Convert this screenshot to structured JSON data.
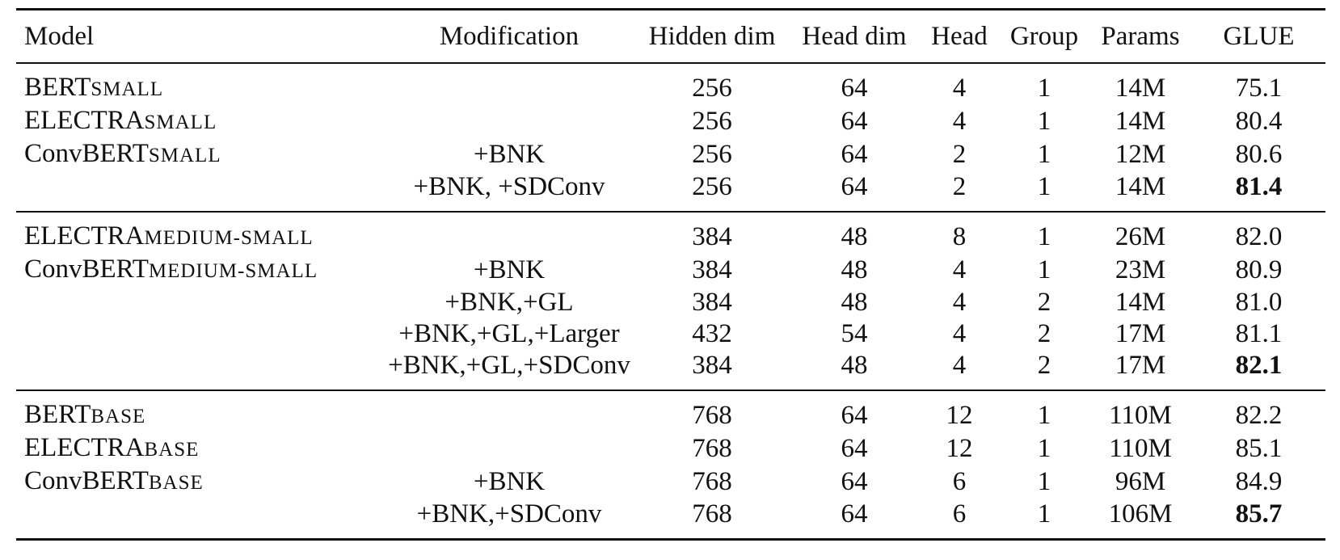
{
  "table": {
    "headers": [
      "Model",
      "Modification",
      "Hidden dim",
      "Head dim",
      "Head",
      "Group",
      "Params",
      "GLUE"
    ],
    "groups": [
      {
        "rows": [
          {
            "model_base": "BERT",
            "model_sub": "SMALL",
            "modification": "",
            "hidden_dim": "256",
            "head_dim": "64",
            "head": "4",
            "group": "1",
            "params": "14M",
            "glue": "75.1",
            "glue_bold": false
          },
          {
            "model_base": "ELECTRA",
            "model_sub": "SMALL",
            "modification": "",
            "hidden_dim": "256",
            "head_dim": "64",
            "head": "4",
            "group": "1",
            "params": "14M",
            "glue": "80.4",
            "glue_bold": false
          },
          {
            "model_base": "ConvBERT",
            "model_sub": "SMALL",
            "modification": "+BNK",
            "hidden_dim": "256",
            "head_dim": "64",
            "head": "2",
            "group": "1",
            "params": "12M",
            "glue": "80.6",
            "glue_bold": false
          },
          {
            "model_base": "",
            "model_sub": "",
            "modification": "+BNK, +SDConv",
            "hidden_dim": "256",
            "head_dim": "64",
            "head": "2",
            "group": "1",
            "params": "14M",
            "glue": "81.4",
            "glue_bold": true
          }
        ]
      },
      {
        "rows": [
          {
            "model_base": "ELECTRA",
            "model_sub": "MEDIUM-SMALL",
            "modification": "",
            "hidden_dim": "384",
            "head_dim": "48",
            "head": "8",
            "group": "1",
            "params": "26M",
            "glue": "82.0",
            "glue_bold": false
          },
          {
            "model_base": "ConvBERT",
            "model_sub": "MEDIUM-SMALL",
            "modification": "+BNK",
            "hidden_dim": "384",
            "head_dim": "48",
            "head": "4",
            "group": "1",
            "params": "23M",
            "glue": "80.9",
            "glue_bold": false
          },
          {
            "model_base": "",
            "model_sub": "",
            "modification": "+BNK,+GL",
            "hidden_dim": "384",
            "head_dim": "48",
            "head": "4",
            "group": "2",
            "params": "14M",
            "glue": "81.0",
            "glue_bold": false
          },
          {
            "model_base": "",
            "model_sub": "",
            "modification": "+BNK,+GL,+Larger",
            "hidden_dim": "432",
            "head_dim": "54",
            "head": "4",
            "group": "2",
            "params": "17M",
            "glue": "81.1",
            "glue_bold": false
          },
          {
            "model_base": "",
            "model_sub": "",
            "modification": "+BNK,+GL,+SDConv",
            "hidden_dim": "384",
            "head_dim": "48",
            "head": "4",
            "group": "2",
            "params": "17M",
            "glue": "82.1",
            "glue_bold": true
          }
        ]
      },
      {
        "rows": [
          {
            "model_base": "BERT",
            "model_sub": "BASE",
            "modification": "",
            "hidden_dim": "768",
            "head_dim": "64",
            "head": "12",
            "group": "1",
            "params": "110M",
            "glue": "82.2",
            "glue_bold": false
          },
          {
            "model_base": "ELECTRA",
            "model_sub": "BASE",
            "modification": "",
            "hidden_dim": "768",
            "head_dim": "64",
            "head": "12",
            "group": "1",
            "params": "110M",
            "glue": "85.1",
            "glue_bold": false
          },
          {
            "model_base": "ConvBERT",
            "model_sub": "BASE",
            "modification": "+BNK",
            "hidden_dim": "768",
            "head_dim": "64",
            "head": "6",
            "group": "1",
            "params": "96M",
            "glue": "84.9",
            "glue_bold": false
          },
          {
            "model_base": "",
            "model_sub": "",
            "modification": "+BNK,+SDConv",
            "hidden_dim": "768",
            "head_dim": "64",
            "head": "6",
            "group": "1",
            "params": "106M",
            "glue": "85.7",
            "glue_bold": true
          }
        ]
      }
    ]
  }
}
